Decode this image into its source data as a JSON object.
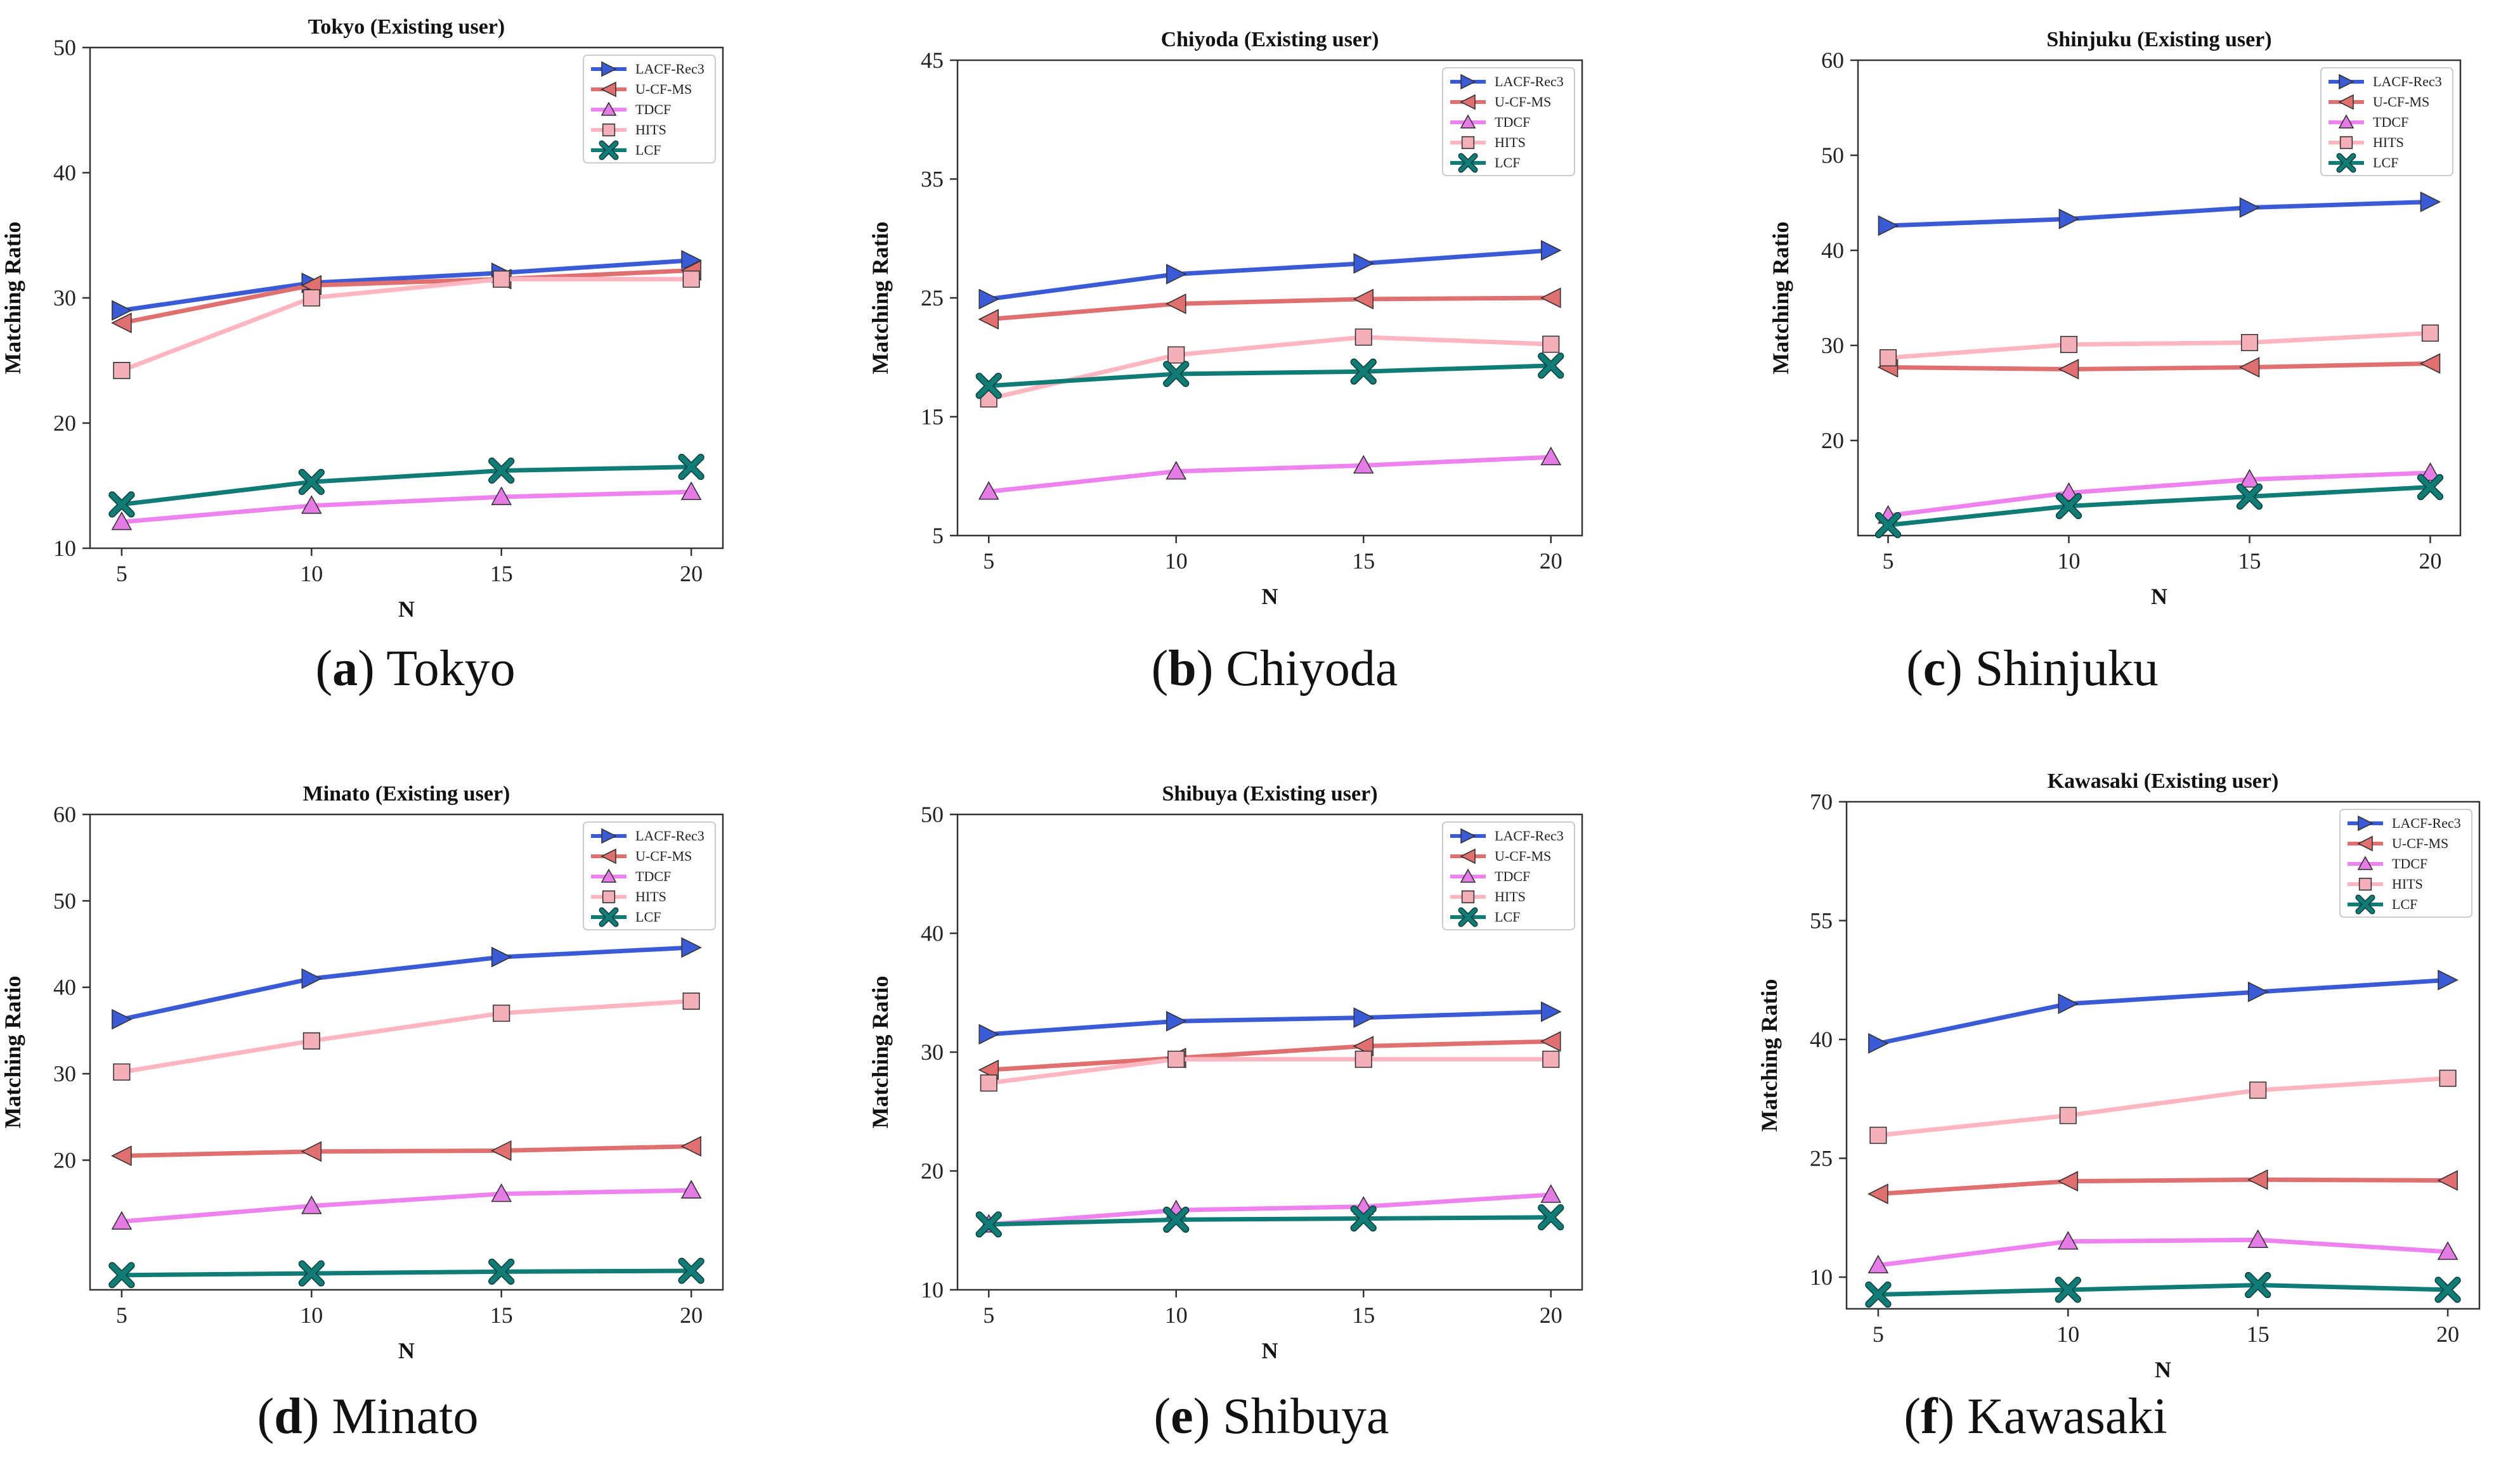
{
  "figure": {
    "panels": [
      {
        "letter": "a",
        "name": "Tokyo"
      },
      {
        "letter": "b",
        "name": "Chiyoda"
      },
      {
        "letter": "c",
        "name": "Shinjuku"
      },
      {
        "letter": "d",
        "name": "Minato"
      },
      {
        "letter": "e",
        "name": "Shibuya"
      },
      {
        "letter": "f",
        "name": "Kawasaki"
      }
    ]
  },
  "series_styles": [
    {
      "name": "LACF-Rec3",
      "color": "#3b5bd6",
      "marker": "triangle-right",
      "marker_fill": "#3b5bd6"
    },
    {
      "name": "U-CF-MS",
      "color": "#e07070",
      "marker": "triangle-left",
      "marker_fill": "#e07070"
    },
    {
      "name": "TDCF",
      "color": "#ee82ee",
      "marker": "triangle-up",
      "marker_fill": "#e57be5"
    },
    {
      "name": "HITS",
      "color": "#ffb6c1",
      "marker": "square",
      "marker_fill": "#f4b0b8"
    },
    {
      "name": "LCF",
      "color": "#117b76",
      "marker": "x",
      "marker_fill": "#117b76"
    }
  ],
  "chart_data": [
    {
      "type": "line",
      "title": "Tokyo (Existing user)",
      "xlabel": "N",
      "ylabel": "Matching Ratio",
      "x": [
        5,
        10,
        15,
        20
      ],
      "xticks": [
        "5",
        "10",
        "15",
        "20"
      ],
      "ylim": [
        10,
        50
      ],
      "yticks": [
        10,
        20,
        30,
        40,
        50
      ],
      "series": [
        {
          "name": "LACF-Rec3",
          "values": [
            29.0,
            31.2,
            32.0,
            33.0
          ]
        },
        {
          "name": "U-CF-MS",
          "values": [
            28.0,
            31.0,
            31.5,
            32.2
          ]
        },
        {
          "name": "TDCF",
          "values": [
            12.1,
            13.4,
            14.1,
            14.5
          ]
        },
        {
          "name": "HITS",
          "values": [
            24.2,
            30.0,
            31.5,
            31.5
          ]
        },
        {
          "name": "LCF",
          "values": [
            13.5,
            15.3,
            16.2,
            16.5
          ]
        }
      ]
    },
    {
      "type": "line",
      "title": "Chiyoda (Existing user)",
      "xlabel": "N",
      "ylabel": "Matching Ratio",
      "x": [
        5,
        10,
        15,
        20
      ],
      "xticks": [
        "5",
        "10",
        "15",
        "20"
      ],
      "ylim": [
        5,
        45
      ],
      "yticks": [
        5,
        15,
        25,
        35,
        45
      ],
      "series": [
        {
          "name": "LACF-Rec3",
          "values": [
            24.9,
            27.0,
            27.9,
            29.0
          ]
        },
        {
          "name": "U-CF-MS",
          "values": [
            23.2,
            24.5,
            24.9,
            25.0
          ]
        },
        {
          "name": "TDCF",
          "values": [
            8.7,
            10.4,
            10.9,
            11.6
          ]
        },
        {
          "name": "HITS",
          "values": [
            16.5,
            20.2,
            21.7,
            21.1
          ]
        },
        {
          "name": "LCF",
          "values": [
            17.6,
            18.6,
            18.8,
            19.3
          ]
        }
      ]
    },
    {
      "type": "line",
      "title": "Shinjuku (Existing user)",
      "xlabel": "N",
      "ylabel": "Matching Ratio",
      "x": [
        5,
        10,
        15,
        20
      ],
      "xticks": [
        "5",
        "10",
        "15",
        "20"
      ],
      "ylim": [
        10,
        60
      ],
      "yticks": [
        20,
        30,
        40,
        50,
        60
      ],
      "series": [
        {
          "name": "LACF-Rec3",
          "values": [
            42.6,
            43.3,
            44.5,
            45.1
          ]
        },
        {
          "name": "U-CF-MS",
          "values": [
            27.7,
            27.5,
            27.7,
            28.1
          ]
        },
        {
          "name": "TDCF",
          "values": [
            12.1,
            14.5,
            15.9,
            16.6
          ]
        },
        {
          "name": "HITS",
          "values": [
            28.7,
            30.1,
            30.3,
            31.3
          ]
        },
        {
          "name": "LCF",
          "values": [
            11.1,
            13.1,
            14.1,
            15.1
          ]
        }
      ]
    },
    {
      "type": "line",
      "title": "Minato (Existing user)",
      "xlabel": "N",
      "ylabel": "Matching Ratio",
      "x": [
        5,
        10,
        15,
        20
      ],
      "xticks": [
        "5",
        "10",
        "15",
        "20"
      ],
      "ylim": [
        5,
        60
      ],
      "yticks": [
        20,
        30,
        40,
        50,
        60
      ],
      "series": [
        {
          "name": "LACF-Rec3",
          "values": [
            36.3,
            41.0,
            43.5,
            44.6
          ]
        },
        {
          "name": "U-CF-MS",
          "values": [
            20.5,
            21.0,
            21.1,
            21.6
          ]
        },
        {
          "name": "TDCF",
          "values": [
            12.9,
            14.7,
            16.1,
            16.5
          ]
        },
        {
          "name": "HITS",
          "values": [
            30.2,
            33.8,
            37.0,
            38.4
          ]
        },
        {
          "name": "LCF",
          "values": [
            6.7,
            6.9,
            7.1,
            7.2
          ]
        }
      ]
    },
    {
      "type": "line",
      "title": "Shibuya (Existing user)",
      "xlabel": "N",
      "ylabel": "Matching Ratio",
      "x": [
        5,
        10,
        15,
        20
      ],
      "xticks": [
        "5",
        "10",
        "15",
        "20"
      ],
      "ylim": [
        10,
        50
      ],
      "yticks": [
        10,
        20,
        30,
        40,
        50
      ],
      "series": [
        {
          "name": "LACF-Rec3",
          "values": [
            31.5,
            32.6,
            32.9,
            33.4
          ]
        },
        {
          "name": "U-CF-MS",
          "values": [
            28.5,
            29.5,
            30.5,
            30.9
          ]
        },
        {
          "name": "TDCF",
          "values": [
            15.5,
            16.7,
            17.0,
            18.0
          ]
        },
        {
          "name": "HITS",
          "values": [
            27.4,
            29.4,
            29.4,
            29.4
          ]
        },
        {
          "name": "LCF",
          "values": [
            15.5,
            15.9,
            16.0,
            16.1
          ]
        }
      ]
    },
    {
      "type": "line",
      "title": "Kawasaki (Existing user)",
      "xlabel": "N",
      "ylabel": "Matching Ratio",
      "x": [
        5,
        10,
        15,
        20
      ],
      "xticks": [
        "5",
        "10",
        "15",
        "20"
      ],
      "ylim": [
        6,
        70
      ],
      "yticks": [
        10,
        25,
        40,
        55,
        70
      ],
      "series": [
        {
          "name": "LACF-Rec3",
          "values": [
            39.5,
            44.5,
            46.0,
            47.5
          ]
        },
        {
          "name": "U-CF-MS",
          "values": [
            20.5,
            22.1,
            22.3,
            22.2
          ]
        },
        {
          "name": "TDCF",
          "values": [
            11.5,
            14.5,
            14.7,
            13.2
          ]
        },
        {
          "name": "HITS",
          "values": [
            27.9,
            30.4,
            33.6,
            35.1
          ]
        },
        {
          "name": "LCF",
          "values": [
            7.8,
            8.4,
            9.0,
            8.4
          ]
        }
      ]
    }
  ]
}
